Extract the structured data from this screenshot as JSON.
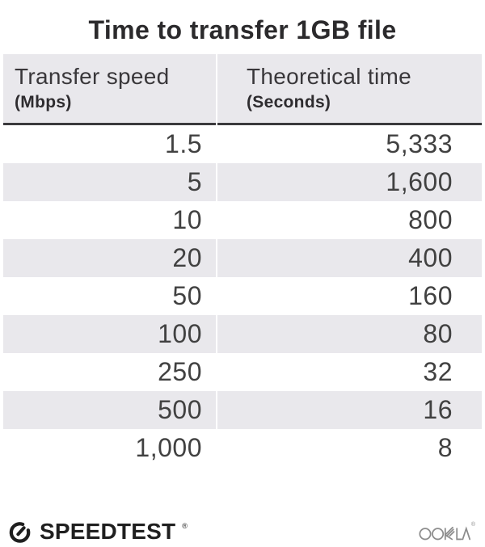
{
  "title": "Time to transfer 1GB file",
  "table": {
    "col1_header": "Transfer speed",
    "col1_sub": "(Mbps)",
    "col2_header": "Theoretical time",
    "col2_sub": "(Seconds)",
    "rows": [
      {
        "speed": "1.5",
        "time": "5,333"
      },
      {
        "speed": "5",
        "time": "1,600"
      },
      {
        "speed": "10",
        "time": "800"
      },
      {
        "speed": "20",
        "time": "400"
      },
      {
        "speed": "50",
        "time": "160"
      },
      {
        "speed": "100",
        "time": "80"
      },
      {
        "speed": "250",
        "time": "32"
      },
      {
        "speed": "500",
        "time": "16"
      },
      {
        "speed": "1,000",
        "time": "8"
      }
    ]
  },
  "chart_data": {
    "type": "table",
    "title": "Time to transfer 1GB file",
    "columns": [
      "Transfer speed (Mbps)",
      "Theoretical time (Seconds)"
    ],
    "rows": [
      [
        1.5,
        5333
      ],
      [
        5,
        1600
      ],
      [
        10,
        800
      ],
      [
        20,
        400
      ],
      [
        50,
        160
      ],
      [
        100,
        80
      ],
      [
        250,
        32
      ],
      [
        500,
        16
      ],
      [
        1000,
        8
      ]
    ]
  },
  "footer": {
    "speedtest_label": "SPEEDTEST",
    "speedtest_reg": "®",
    "ookla_label": "OOKLA",
    "ookla_reg": "®"
  },
  "icons": {
    "gauge": "speedtest-gauge-icon",
    "ookla": "ookla-wordmark"
  },
  "colors": {
    "title_text": "#2b2a2c",
    "header_bg": "#e9e8ec",
    "stripe": "#e9e8ec",
    "rule": "#3b3a3d",
    "body_text": "#414141",
    "logo_black": "#1f1f1f",
    "ookla_gray": "#8c8c8c"
  }
}
